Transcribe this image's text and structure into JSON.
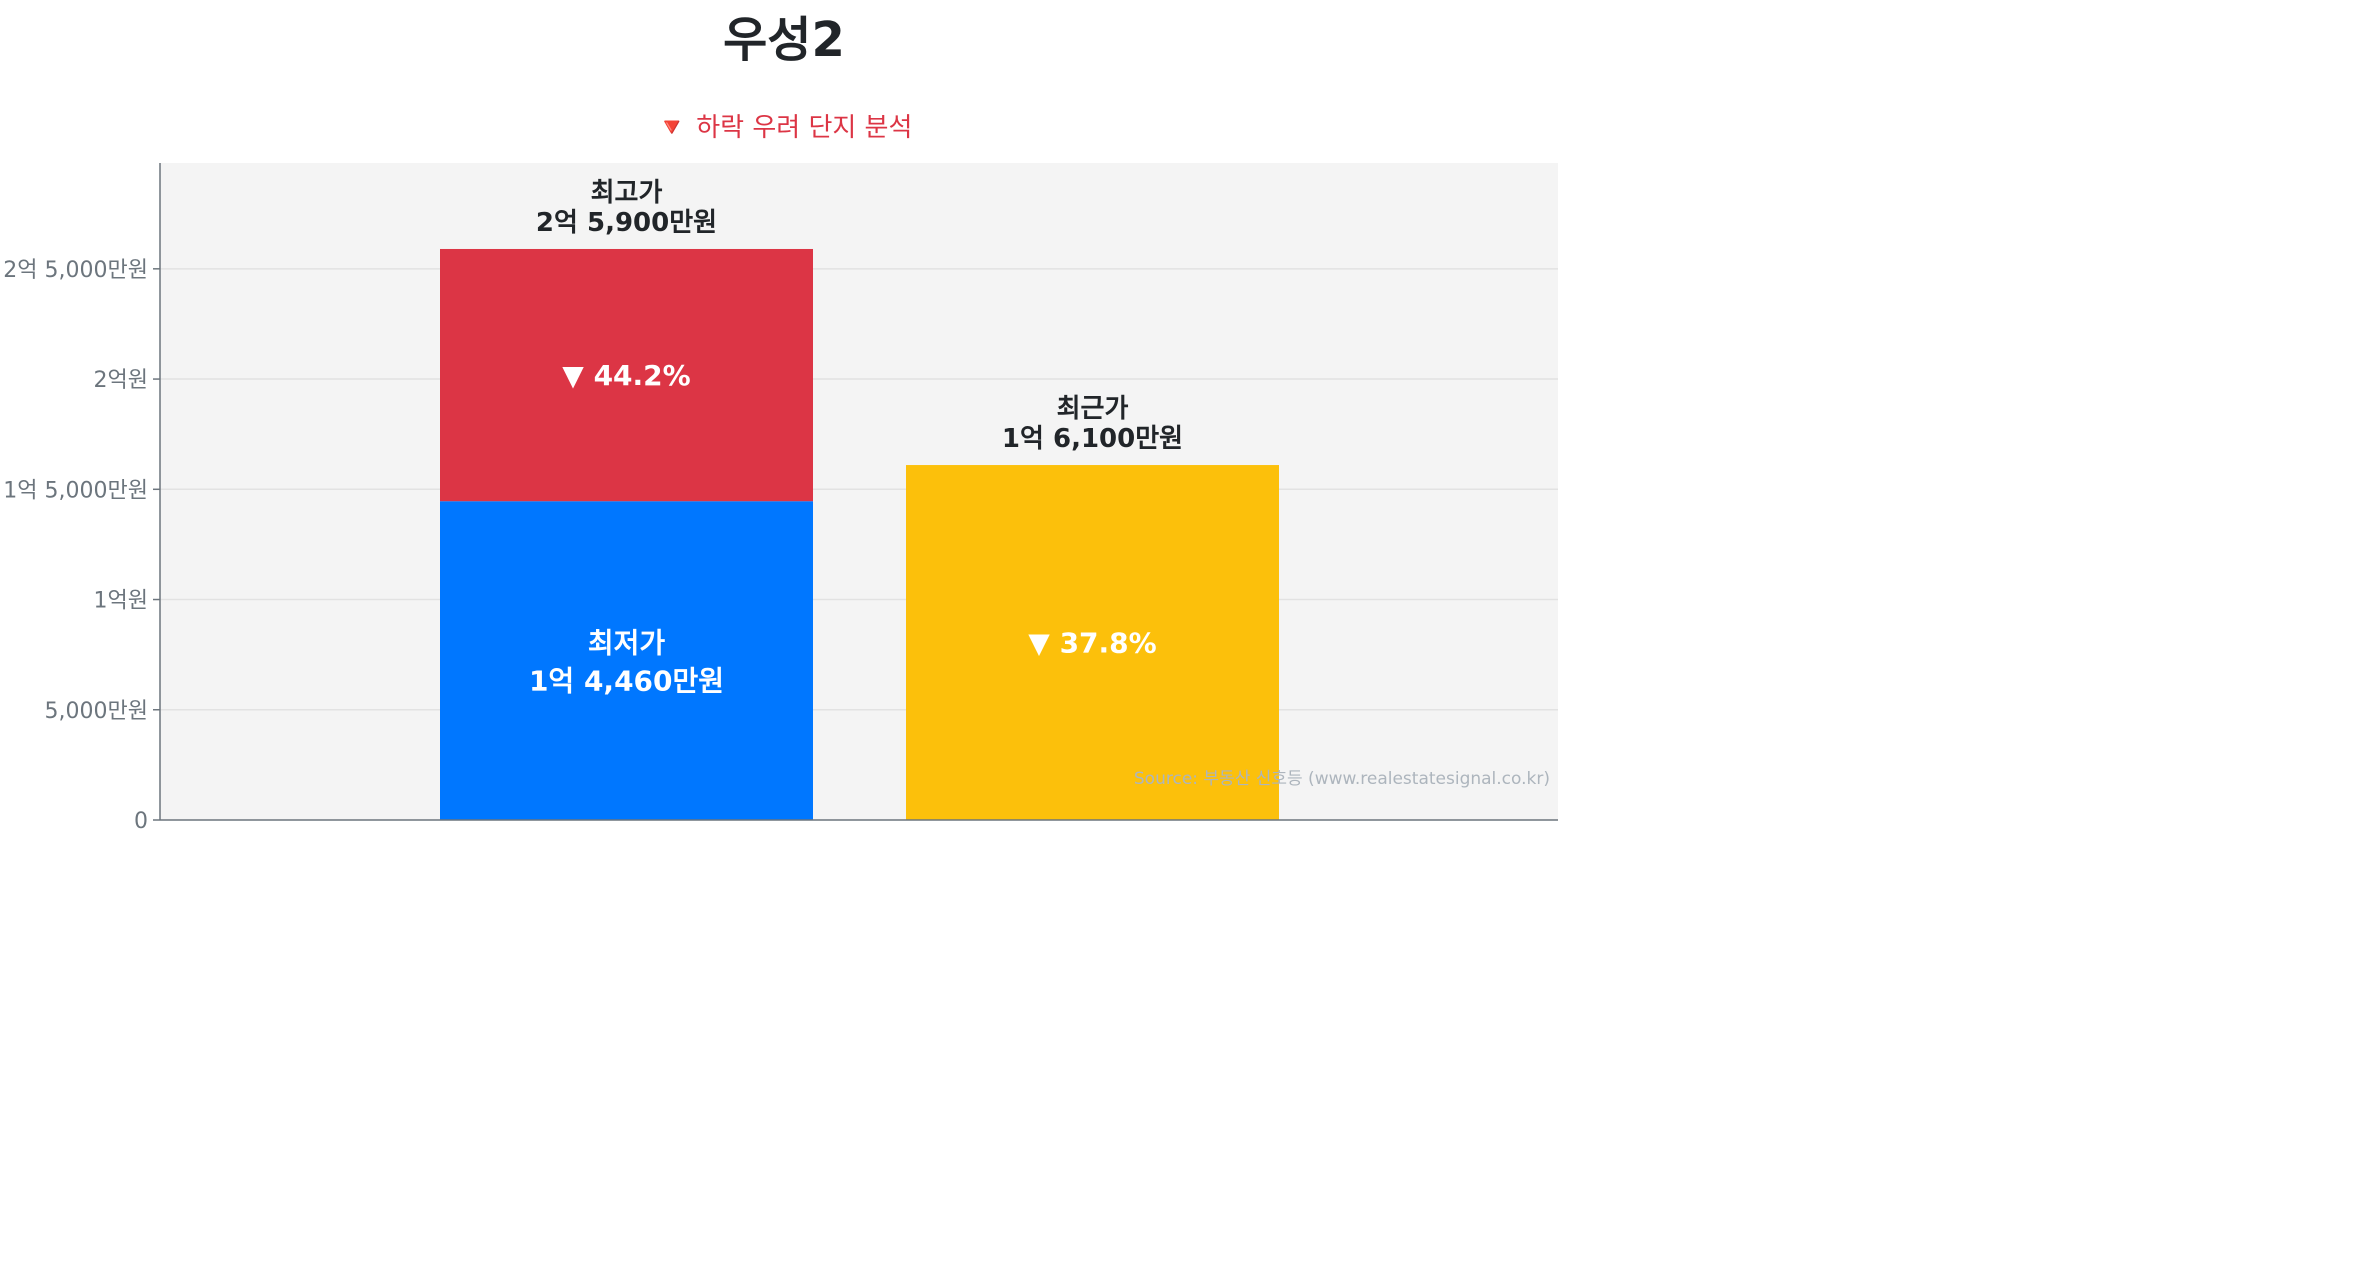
{
  "title": "우성2",
  "subtitle": "🔻 하락 우려 단지 분석",
  "source": "Source: 부동산 신호등 (www.realestatesignal.co.kr)",
  "colors": {
    "plot_bg": "#f4f4f4",
    "highest_segment": "#dc3545",
    "lowest_segment": "#0077ff",
    "recent_bar": "#fcc00b",
    "title": "#212529",
    "subtitle": "#dc3545"
  },
  "chart_data": {
    "type": "bar",
    "stacked": true,
    "unit": "만원",
    "ylim": [
      0,
      29800
    ],
    "grid": true,
    "y_ticks": [
      {
        "value": 0,
        "label": "0"
      },
      {
        "value": 5000,
        "label": "5,000만원"
      },
      {
        "value": 10000,
        "label": "1억원"
      },
      {
        "value": 15000,
        "label": "1억 5,000만원"
      },
      {
        "value": 20000,
        "label": "2억원"
      },
      {
        "value": 25000,
        "label": "2억 5,000만원"
      }
    ],
    "bars": [
      {
        "top_label": "최고가",
        "top_value_label": "2억 5,900만원",
        "total": 25900,
        "segments": [
          {
            "key": "lowest",
            "value": 14460,
            "label": "최저가",
            "value_label": "1억 4,460만원",
            "color": "#0077ff"
          },
          {
            "key": "drop",
            "value": 11440,
            "label": "▼ 44.2%",
            "color": "#dc3545"
          }
        ]
      },
      {
        "top_label": "최근가",
        "top_value_label": "1억 6,100만원",
        "total": 16100,
        "segments": [
          {
            "key": "recent",
            "value": 16100,
            "label": "▼ 37.8%",
            "color": "#fcc00b"
          }
        ]
      }
    ]
  }
}
